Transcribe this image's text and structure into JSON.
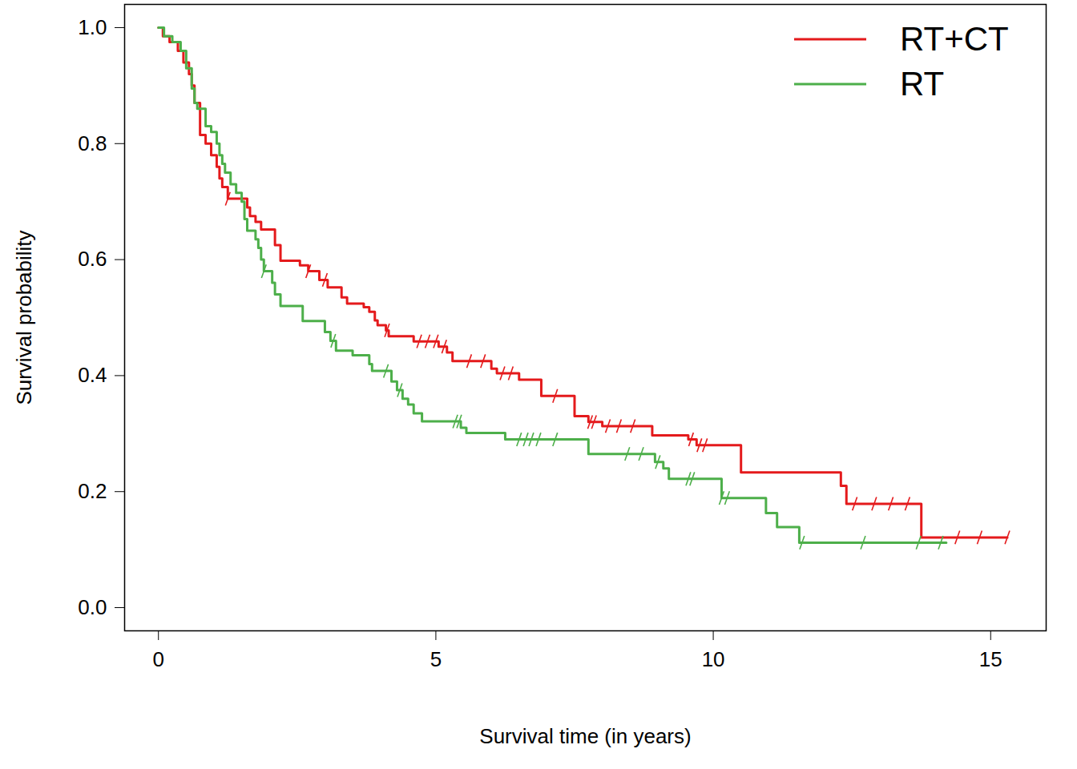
{
  "chart_data": {
    "type": "line",
    "line_style": "step",
    "x_label": "Survival time (in years)",
    "y_label": "Survival probability",
    "xlim": [
      -0.61,
      16.0
    ],
    "ylim": [
      -0.04,
      1.04
    ],
    "xticks": [
      0,
      5,
      10,
      15
    ],
    "yticks": [
      {
        "value": 0,
        "label": "0.0"
      },
      {
        "value": 0.2,
        "label": "0.2"
      },
      {
        "value": 0.4,
        "label": "0.4"
      },
      {
        "value": 0.6,
        "label": "0.6"
      },
      {
        "value": 0.8,
        "label": "0.8"
      },
      {
        "value": 1,
        "label": "1.0"
      }
    ],
    "grid": false,
    "legend": "top-right",
    "series": [
      {
        "name": "RT+CT",
        "color": "#e41a1c",
        "marker": "slash",
        "x": [
          0,
          0.08,
          0.2,
          0.35,
          0.45,
          0.55,
          0.6,
          0.65,
          0.75,
          0.85,
          0.95,
          1.05,
          1.1,
          1.15,
          1.25,
          1.6,
          1.65,
          1.75,
          1.85,
          2.1,
          2.2,
          2.55,
          2.7,
          2.9,
          3.05,
          3.3,
          3.4,
          3.7,
          3.8,
          3.9,
          3.95,
          4.1,
          4.15,
          4.6,
          5.05,
          5.2,
          5.3,
          6.0,
          6.1,
          6.5,
          6.9,
          7.5,
          7.75,
          8.0,
          8.9,
          9.55,
          9.7,
          10.5,
          12.3,
          12.4,
          13.75,
          15.3
        ],
        "values": [
          1,
          0.985,
          0.975,
          0.96,
          0.94,
          0.92,
          0.9,
          0.87,
          0.815,
          0.8,
          0.78,
          0.76,
          0.74,
          0.725,
          0.705,
          0.69,
          0.675,
          0.665,
          0.652,
          0.625,
          0.598,
          0.59,
          0.58,
          0.565,
          0.552,
          0.535,
          0.524,
          0.518,
          0.51,
          0.495,
          0.487,
          0.478,
          0.468,
          0.459,
          0.45,
          0.44,
          0.425,
          0.412,
          0.404,
          0.393,
          0.365,
          0.33,
          0.32,
          0.313,
          0.297,
          0.29,
          0.28,
          0.233,
          0.21,
          0.179,
          0.121,
          0.121
        ],
        "censor_x": [
          1.25,
          2.7,
          3.0,
          4.12,
          4.7,
          4.85,
          5.0,
          5.15,
          5.6,
          5.85,
          6.2,
          6.35,
          7.15,
          7.78,
          7.85,
          8.1,
          8.3,
          8.55,
          9.6,
          9.75,
          9.85,
          12.55,
          12.9,
          13.2,
          13.5,
          14.4,
          14.8,
          15.3
        ],
        "censor_values": [
          0.705,
          0.58,
          0.565,
          0.478,
          0.459,
          0.459,
          0.459,
          0.45,
          0.425,
          0.425,
          0.404,
          0.404,
          0.365,
          0.32,
          0.32,
          0.313,
          0.313,
          0.313,
          0.29,
          0.28,
          0.28,
          0.179,
          0.179,
          0.179,
          0.179,
          0.121,
          0.121,
          0.121
        ]
      },
      {
        "name": "RT",
        "color": "#4daf4a",
        "marker": "slash",
        "x": [
          0,
          0.1,
          0.25,
          0.4,
          0.5,
          0.6,
          0.65,
          0.7,
          0.85,
          0.95,
          1.05,
          1.1,
          1.15,
          1.2,
          1.3,
          1.4,
          1.5,
          1.55,
          1.6,
          1.75,
          1.8,
          1.85,
          1.9,
          2.05,
          2.1,
          2.2,
          2.6,
          3.0,
          3.1,
          3.2,
          3.5,
          3.8,
          3.85,
          4.2,
          4.3,
          4.4,
          4.5,
          4.6,
          4.75,
          5.45,
          5.55,
          6.25,
          7.75,
          8.95,
          9.1,
          9.2,
          10.15,
          10.95,
          11.15,
          11.55,
          14.2
        ],
        "values": [
          1,
          0.985,
          0.975,
          0.96,
          0.93,
          0.895,
          0.87,
          0.86,
          0.83,
          0.82,
          0.8,
          0.78,
          0.765,
          0.75,
          0.73,
          0.715,
          0.7,
          0.67,
          0.65,
          0.635,
          0.62,
          0.6,
          0.58,
          0.56,
          0.54,
          0.52,
          0.494,
          0.475,
          0.46,
          0.443,
          0.435,
          0.42,
          0.408,
          0.39,
          0.375,
          0.36,
          0.35,
          0.335,
          0.321,
          0.31,
          0.301,
          0.29,
          0.265,
          0.251,
          0.24,
          0.222,
          0.189,
          0.163,
          0.139,
          0.112,
          0.112
        ],
        "censor_x": [
          1.9,
          3.15,
          4.1,
          4.35,
          5.35,
          5.42,
          6.5,
          6.62,
          6.72,
          6.85,
          7.15,
          8.45,
          8.7,
          9.0,
          9.55,
          9.62,
          10.15,
          10.25,
          11.6,
          12.7,
          13.7,
          14.1
        ],
        "censor_values": [
          0.58,
          0.46,
          0.408,
          0.375,
          0.321,
          0.321,
          0.29,
          0.29,
          0.29,
          0.29,
          0.29,
          0.265,
          0.265,
          0.251,
          0.222,
          0.222,
          0.189,
          0.189,
          0.112,
          0.112,
          0.112,
          0.112
        ]
      }
    ]
  }
}
